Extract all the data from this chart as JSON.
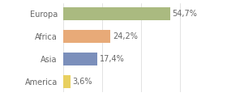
{
  "categories": [
    "America",
    "Asia",
    "Africa",
    "Europa"
  ],
  "values": [
    3.6,
    17.4,
    24.2,
    54.7
  ],
  "labels": [
    "3,6%",
    "17,4%",
    "24,2%",
    "54,7%"
  ],
  "bar_colors": [
    "#e8d060",
    "#7b8fbb",
    "#e8aa78",
    "#aaba80"
  ],
  "background_color": "#ffffff",
  "xlim": [
    0,
    70
  ],
  "bar_height": 0.58,
  "label_fontsize": 7.0,
  "tick_fontsize": 7.0,
  "label_color": "#666666",
  "tick_color": "#666666",
  "grid_color": "#d8d8d8"
}
